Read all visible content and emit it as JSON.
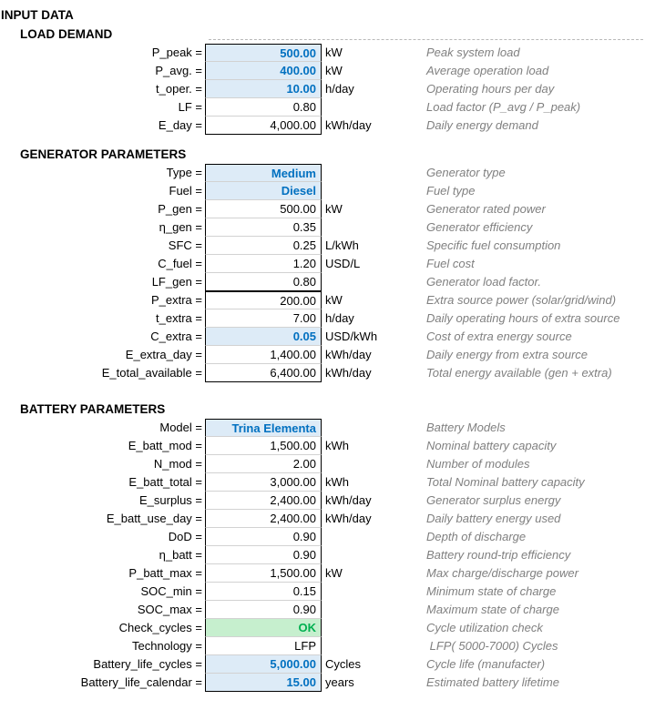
{
  "title": "INPUT DATA",
  "colors": {
    "input_cell_fill": "#DDEBF7",
    "input_cell_text": "#0070C0",
    "check_ok_fill": "#C6EFCE",
    "check_ok_text": "#00B050",
    "description_text": "#808080",
    "cell_border": "#000000"
  },
  "sections": [
    {
      "header": "LOAD DEMAND",
      "groups": [
        [
          {
            "label": "P_peak =",
            "value": "500.00",
            "unit": "kW",
            "desc": "Peak system load",
            "style": "input"
          },
          {
            "label": "P_avg. =",
            "value": "400.00",
            "unit": "kW",
            "desc": "Average operation load",
            "style": "input"
          },
          {
            "label": "t_oper. =",
            "value": "10.00",
            "unit": "h/day",
            "desc": "Operating hours per day",
            "style": "input"
          },
          {
            "label": "LF =",
            "value": "0.80",
            "unit": "",
            "desc": "Load factor (P_avg / P_peak)",
            "style": "calc"
          },
          {
            "label": "E_day =",
            "value": "4,000.00",
            "unit": "kWh/day",
            "desc": "Daily energy demand",
            "style": "calc"
          }
        ]
      ]
    },
    {
      "header": "GENERATOR PARAMETERS",
      "groups": [
        [
          {
            "label": "Type =",
            "value": "Medium",
            "unit": "",
            "desc": "Generator type",
            "style": "input"
          },
          {
            "label": "Fuel =",
            "value": "Diesel",
            "unit": "",
            "desc": "Fuel type",
            "style": "input"
          },
          {
            "label": "P_gen =",
            "value": "500.00",
            "unit": "kW",
            "desc": "Generator rated power",
            "style": "calc"
          },
          {
            "label": "η_gen =",
            "value": "0.35",
            "unit": "",
            "desc": "Generator efficiency",
            "style": "calc"
          },
          {
            "label": "SFC =",
            "value": "0.25",
            "unit": "L/kWh",
            "desc": "Specific fuel consumption",
            "style": "calc"
          },
          {
            "label": "C_fuel =",
            "value": "1.20",
            "unit": "USD/L",
            "desc": "Fuel cost",
            "style": "calc"
          },
          {
            "label": "LF_gen =",
            "value": "0.80",
            "unit": "",
            "desc": "Generator load factor.",
            "style": "calc"
          }
        ],
        [
          {
            "label": "P_extra =",
            "value": "200.00",
            "unit": "kW",
            "desc": "Extra source power (solar/grid/wind)",
            "style": "calc"
          },
          {
            "label": "t_extra =",
            "value": "7.00",
            "unit": "h/day",
            "desc": "Daily operating hours of extra source",
            "style": "calc"
          },
          {
            "label": "C_extra =",
            "value": "0.05",
            "unit": "USD/kWh",
            "desc": "Cost of extra energy source",
            "style": "input"
          },
          {
            "label": "E_extra_day =",
            "value": "1,400.00",
            "unit": "kWh/day",
            "desc": "Daily energy from extra source",
            "style": "calc"
          },
          {
            "label": "E_total_available =",
            "value": "6,400.00",
            "unit": "kWh/day",
            "desc": "Total energy available (gen + extra)",
            "style": "calc"
          }
        ]
      ]
    },
    {
      "header": "BATTERY PARAMETERS",
      "groups": [
        [
          {
            "label": "Model =",
            "value": "Trina Elementa",
            "unit": "",
            "desc": "Battery Models",
            "style": "input"
          },
          {
            "label": "E_batt_mod =",
            "value": "1,500.00",
            "unit": "kWh",
            "desc": "Nominal battery capacity",
            "style": "calc"
          },
          {
            "label": "N_mod =",
            "value": "2.00",
            "unit": "",
            "desc": "Number of modules",
            "style": "calc"
          },
          {
            "label": "E_batt_total =",
            "value": "3,000.00",
            "unit": "kWh",
            "desc": "Total Nominal battery capacity",
            "style": "calc"
          },
          {
            "label": "E_surplus =",
            "value": "2,400.00",
            "unit": "kWh/day",
            "desc": "Generator surplus energy",
            "style": "calc"
          },
          {
            "label": "E_batt_use_day =",
            "value": "2,400.00",
            "unit": "kWh/day",
            "desc": "Daily battery energy used",
            "style": "calc"
          },
          {
            "label": "DoD =",
            "value": "0.90",
            "unit": "",
            "desc": "Depth of discharge",
            "style": "calc"
          },
          {
            "label": "η_batt =",
            "value": "0.90",
            "unit": "",
            "desc": "Battery round-trip efficiency",
            "style": "calc"
          },
          {
            "label": "P_batt_max =",
            "value": "1,500.00",
            "unit": "kW",
            "desc": "Max charge/discharge power",
            "style": "calc"
          },
          {
            "label": "SOC_min =",
            "value": "0.15",
            "unit": "",
            "desc": "Minimum state of charge",
            "style": "calc"
          },
          {
            "label": "SOC_max =",
            "value": "0.90",
            "unit": "",
            "desc": "Maximum state of charge",
            "style": "calc"
          },
          {
            "label": "Check_cycles =",
            "value": "OK",
            "unit": "",
            "desc": "Cycle utilization check",
            "style": "good"
          },
          {
            "label": "Technology =",
            "value": "LFP",
            "unit": "",
            "desc": " LFP( 5000-7000) Cycles",
            "style": "calc"
          },
          {
            "label": "Battery_life_cycles =",
            "value": "5,000.00",
            "unit": "Cycles",
            "desc": "Cycle life (manufacter)",
            "style": "input"
          },
          {
            "label": "Battery_life_calendar =",
            "value": "15.00",
            "unit": "years",
            "desc": "Estimated battery lifetime",
            "style": "input"
          }
        ]
      ]
    }
  ]
}
